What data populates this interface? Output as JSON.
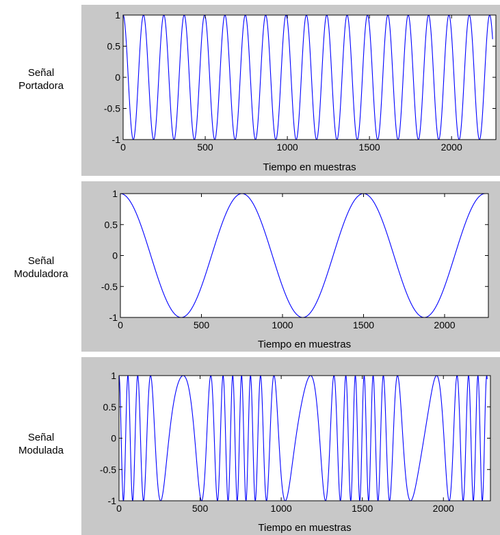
{
  "chart_data": [
    {
      "type": "line",
      "row_label": "Señal\nPortadora",
      "xlabel": "Tiempo en muestras",
      "ylabel": "",
      "xlim": [
        0,
        2270
      ],
      "ylim": [
        -1,
        1
      ],
      "x_ticks": [
        0,
        500,
        1000,
        1500,
        2000
      ],
      "x_tick_labels": [
        "0",
        "500",
        "1000",
        "1500",
        "2000"
      ],
      "y_ticks": [
        1,
        0.5,
        0,
        -0.5,
        -1
      ],
      "y_tick_labels": [
        "1",
        "0.5",
        "0",
        "-0.5",
        "-1"
      ],
      "grid": false,
      "series": [
        {
          "signal": "cosine",
          "period_samples": 124,
          "n_samples": 2250,
          "color": "#0000ff"
        }
      ]
    },
    {
      "type": "line",
      "row_label": "Señal\nModuladora",
      "xlabel": "Tiempo en muestras",
      "ylabel": "",
      "xlim": [
        0,
        2270
      ],
      "ylim": [
        -1,
        1
      ],
      "x_ticks": [
        0,
        500,
        1000,
        1500,
        2000
      ],
      "x_tick_labels": [
        "0",
        "500",
        "1000",
        "1500",
        "2000"
      ],
      "y_ticks": [
        1,
        0.5,
        0,
        -0.5,
        -1
      ],
      "y_tick_labels": [
        "1",
        "0.5",
        "0",
        "-0.5",
        "-1"
      ],
      "grid": false,
      "series": [
        {
          "signal": "cosine",
          "period_samples": 750,
          "n_samples": 2250,
          "color": "#0000ff"
        }
      ]
    },
    {
      "type": "line",
      "row_label": "Señal\nModulada",
      "xlabel": "Tiempo en muestras",
      "ylabel": "",
      "xlim": [
        0,
        2290
      ],
      "ylim": [
        -1,
        1
      ],
      "x_ticks": [
        0,
        500,
        1000,
        1500,
        2000
      ],
      "x_tick_labels": [
        "0",
        "500",
        "1000",
        "1500",
        "2000"
      ],
      "y_ticks": [
        1,
        0.5,
        0,
        -0.5,
        -1
      ],
      "y_tick_labels": [
        "1",
        "0.5",
        "0",
        "-0.5",
        "-1"
      ],
      "grid": false,
      "series": [
        {
          "signal": "fm",
          "carrier_period_samples": 95,
          "modulator_period_samples": 750,
          "modulation_index": 6,
          "n_samples": 2270,
          "color": "#0000ff"
        }
      ]
    }
  ],
  "colors": {
    "panel_background": "#c8c8c8",
    "plot_background": "#ffffff",
    "line": "#0000ff",
    "axes": "#000000"
  }
}
